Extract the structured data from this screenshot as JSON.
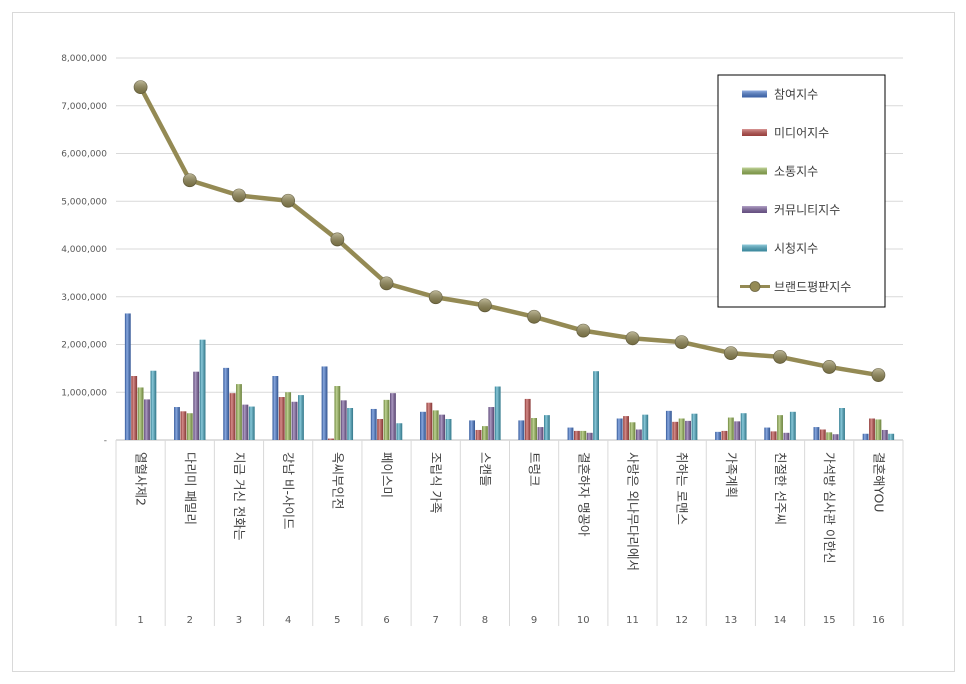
{
  "chart_data": {
    "type": "bar",
    "categories": [
      "열혈사제2",
      "다리미 패밀리",
      "지금 거신 전화는",
      "강남 비-사이드",
      "옥씨부인전",
      "페이스미",
      "조립식 가족",
      "스캔들",
      "트렁크",
      "결혼하자 맹꽁아",
      "사랑은 외나무다리에서",
      "취하는 로맨스",
      "가족계획",
      "친절한 선주씨",
      "가석방 심사관 이한신",
      "결혼해YOU"
    ],
    "category_numbers": [
      "1",
      "2",
      "3",
      "4",
      "5",
      "6",
      "7",
      "8",
      "9",
      "10",
      "11",
      "12",
      "13",
      "14",
      "15",
      "16"
    ],
    "ylim": [
      0,
      8000000
    ],
    "yticks": [
      "-",
      "1,000,000",
      "2,000,000",
      "3,000,000",
      "4,000,000",
      "5,000,000",
      "6,000,000",
      "7,000,000",
      "8,000,000"
    ],
    "grid": true,
    "legend_position": "top-right",
    "series": [
      {
        "name": "참여지수",
        "kind": "bar",
        "color": "#4a7bd0",
        "values": [
          2650000,
          690000,
          1510000,
          1340000,
          1540000,
          650000,
          590000,
          410000,
          410000,
          260000,
          450000,
          610000,
          170000,
          260000,
          270000,
          130000
        ]
      },
      {
        "name": "미디어지수",
        "kind": "bar",
        "color": "#c0504d",
        "values": [
          1340000,
          600000,
          980000,
          900000,
          30000,
          440000,
          780000,
          210000,
          860000,
          190000,
          500000,
          380000,
          190000,
          180000,
          220000,
          450000
        ]
      },
      {
        "name": "소통지수",
        "kind": "bar",
        "color": "#9bbb59",
        "values": [
          1100000,
          560000,
          1170000,
          1000000,
          1130000,
          840000,
          620000,
          290000,
          460000,
          190000,
          370000,
          450000,
          470000,
          520000,
          160000,
          430000
        ]
      },
      {
        "name": "커뮤니티지수",
        "kind": "bar",
        "color": "#8064a2",
        "values": [
          850000,
          1430000,
          740000,
          800000,
          830000,
          980000,
          530000,
          690000,
          270000,
          150000,
          220000,
          400000,
          390000,
          150000,
          120000,
          210000
        ]
      },
      {
        "name": "시청지수",
        "kind": "bar",
        "color": "#4bacc6",
        "values": [
          1450000,
          2100000,
          700000,
          940000,
          670000,
          350000,
          440000,
          1120000,
          520000,
          1440000,
          530000,
          550000,
          560000,
          590000,
          670000,
          130000
        ]
      },
      {
        "name": "브랜드평판지수",
        "kind": "line",
        "color": "#948a54",
        "values": [
          7390000,
          5440000,
          5120000,
          5010000,
          4200000,
          3280000,
          2990000,
          2820000,
          2580000,
          2290000,
          2130000,
          2050000,
          1820000,
          1740000,
          1530000,
          1360000
        ]
      }
    ]
  }
}
